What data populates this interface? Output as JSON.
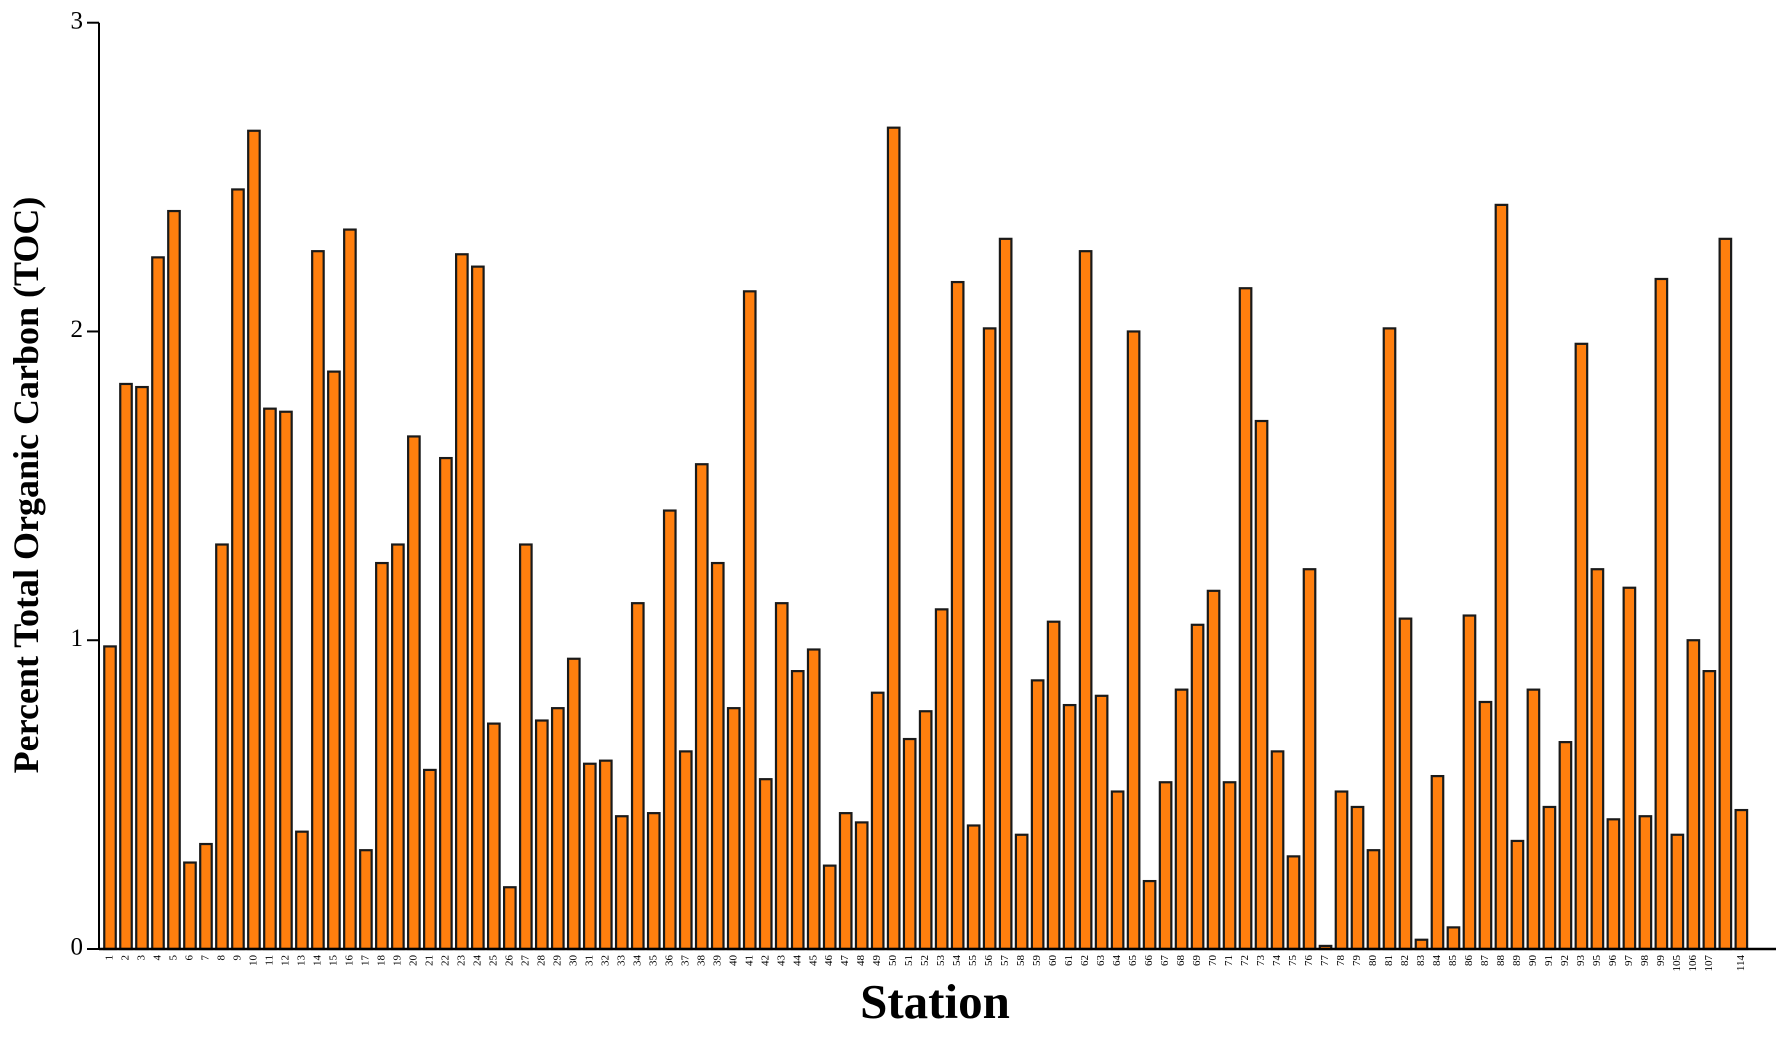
{
  "chart_data": {
    "type": "bar",
    "x_label": "Station",
    "y_label": "Percent Total Organic Carbon (TOC)",
    "color": "#ff7f0e",
    "edge_color": "#1a1a1a",
    "categories": [
      "1",
      "2",
      "3",
      "4",
      "5",
      "6",
      "7",
      "8",
      "9",
      "10",
      "11",
      "12",
      "13",
      "14",
      "15",
      "16",
      "17",
      "18",
      "19",
      "20",
      "21",
      "22",
      "23",
      "24",
      "25",
      "26",
      "27",
      "28",
      "29",
      "30",
      "31",
      "32",
      "33",
      "34",
      "35",
      "36",
      "37",
      "38",
      "39",
      "40",
      "41",
      "42",
      "43",
      "44",
      "45",
      "46",
      "47",
      "48",
      "49",
      "50",
      "51",
      "52",
      "53",
      "54",
      "55",
      "56",
      "57",
      "58",
      "59",
      "60",
      "61",
      "62",
      "63",
      "64",
      "65",
      "66",
      "67",
      "68",
      "69",
      "70",
      "71",
      "72",
      "73",
      "74",
      "75",
      "76",
      "77",
      "78",
      "79",
      "80",
      "81",
      "82",
      "83",
      "84",
      "85",
      "86",
      "87",
      "88",
      "89",
      "90",
      "91",
      "92",
      "93",
      "95",
      "96",
      "97",
      "98",
      "99",
      "105",
      "106",
      "107",
      null,
      "114"
    ],
    "values": [
      0.98,
      1.83,
      1.82,
      2.24,
      2.39,
      0.28,
      0.34,
      1.31,
      2.46,
      2.65,
      1.75,
      1.74,
      0.38,
      2.26,
      1.87,
      2.33,
      0.32,
      1.25,
      1.31,
      1.66,
      0.58,
      1.59,
      2.25,
      2.21,
      0.73,
      0.2,
      1.31,
      0.74,
      0.78,
      0.94,
      0.6,
      0.61,
      0.43,
      1.12,
      0.44,
      1.42,
      0.64,
      1.57,
      1.25,
      0.78,
      2.13,
      0.55,
      1.12,
      0.9,
      0.97,
      0.27,
      0.44,
      0.41,
      0.83,
      2.66,
      0.68,
      0.77,
      1.1,
      2.16,
      0.4,
      2.01,
      2.3,
      0.37,
      0.87,
      1.06,
      0.79,
      2.26,
      0.82,
      0.51,
      2.0,
      0.22,
      0.54,
      0.84,
      1.05,
      1.16,
      0.54,
      2.14,
      1.71,
      0.64,
      0.3,
      1.23,
      0.01,
      0.51,
      0.46,
      0.32,
      2.01,
      1.07,
      0.03,
      0.56,
      0.07,
      1.08,
      0.8,
      2.41,
      0.35,
      0.84,
      0.46,
      0.67,
      1.96,
      1.23,
      0.42,
      1.17,
      0.43,
      2.17,
      0.37,
      1.0,
      0.9,
      2.3,
      0.45
    ],
    "ylim": [
      0,
      3
    ],
    "yticks": [
      0,
      1,
      2,
      3
    ]
  }
}
